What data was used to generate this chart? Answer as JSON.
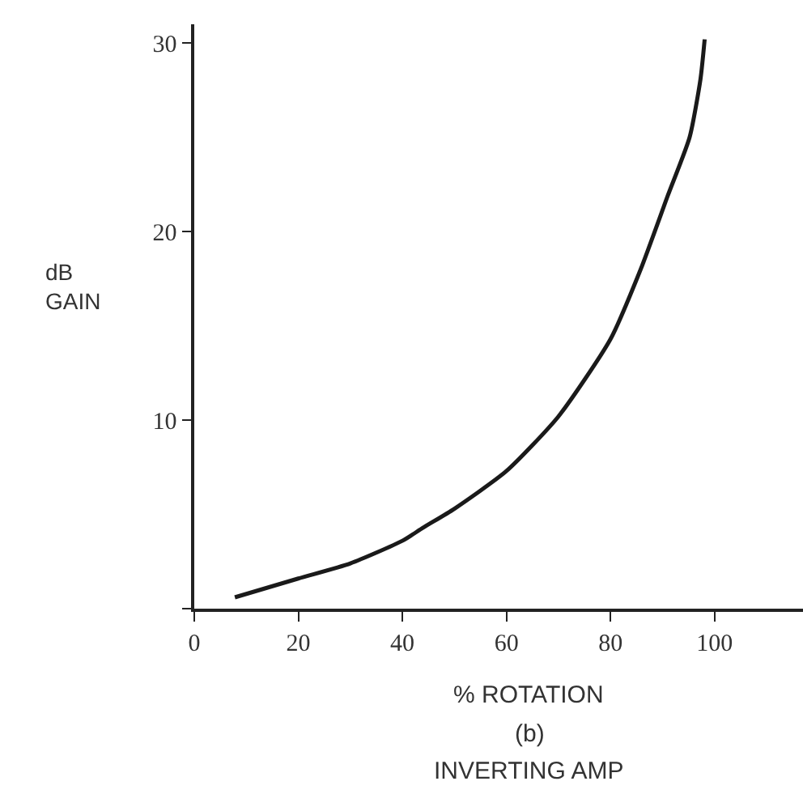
{
  "chart_data": {
    "type": "line",
    "xlabel": "% ROTATION",
    "ylabel": "dB\nGAIN",
    "annotations": [
      "(b)",
      "INVERTING AMP"
    ],
    "x": [
      7.8,
      20,
      30,
      40,
      44,
      50,
      60,
      70,
      80,
      85.8,
      91,
      95.2,
      97.3,
      98.1
    ],
    "series": [
      {
        "color": "#1a1a1a",
        "values": [
          0.6,
          1.6,
          2.4,
          3.6,
          4.3,
          5.3,
          7.3,
          10.2,
          14.3,
          18.0,
          21.9,
          25.0,
          28.1,
          30.2
        ]
      }
    ],
    "xlim": [
      0,
      117
    ],
    "ylim": [
      0,
      31
    ],
    "xticks": [
      0,
      20,
      40,
      60,
      80,
      100
    ],
    "yticks": [
      {
        "value": 0,
        "label": null
      },
      10,
      20,
      30
    ],
    "grid": false,
    "marker": "none",
    "line_style": "solid"
  }
}
